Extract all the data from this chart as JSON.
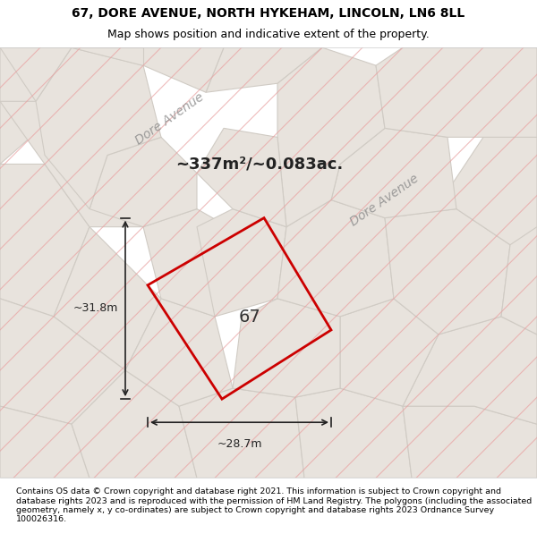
{
  "title_line1": "67, DORE AVENUE, NORTH HYKEHAM, LINCOLN, LN6 8LL",
  "title_line2": "Map shows position and indicative extent of the property.",
  "area_label": "~337m²/~0.083ac.",
  "property_number": "67",
  "dim_width": "~28.7m",
  "dim_height": "~31.8m",
  "street_label": "Dore Avenue",
  "footer_text": "Contains OS data © Crown copyright and database right 2021. This information is subject to Crown copyright and database rights 2023 and is reproduced with the permission of HM Land Registry. The polygons (including the associated geometry, namely x, y co-ordinates) are subject to Crown copyright and database rights 2023 Ordnance Survey 100026316.",
  "bg_color": "#f5f0eb",
  "map_bg": "#f0ece6",
  "polygon_color": "#cc0000",
  "polygon_fill": "none",
  "hatch_color_gray": "#cccccc",
  "hatch_color_pink": "#f5a0a0",
  "title_bg": "#ffffff",
  "footer_bg": "#ffffff"
}
